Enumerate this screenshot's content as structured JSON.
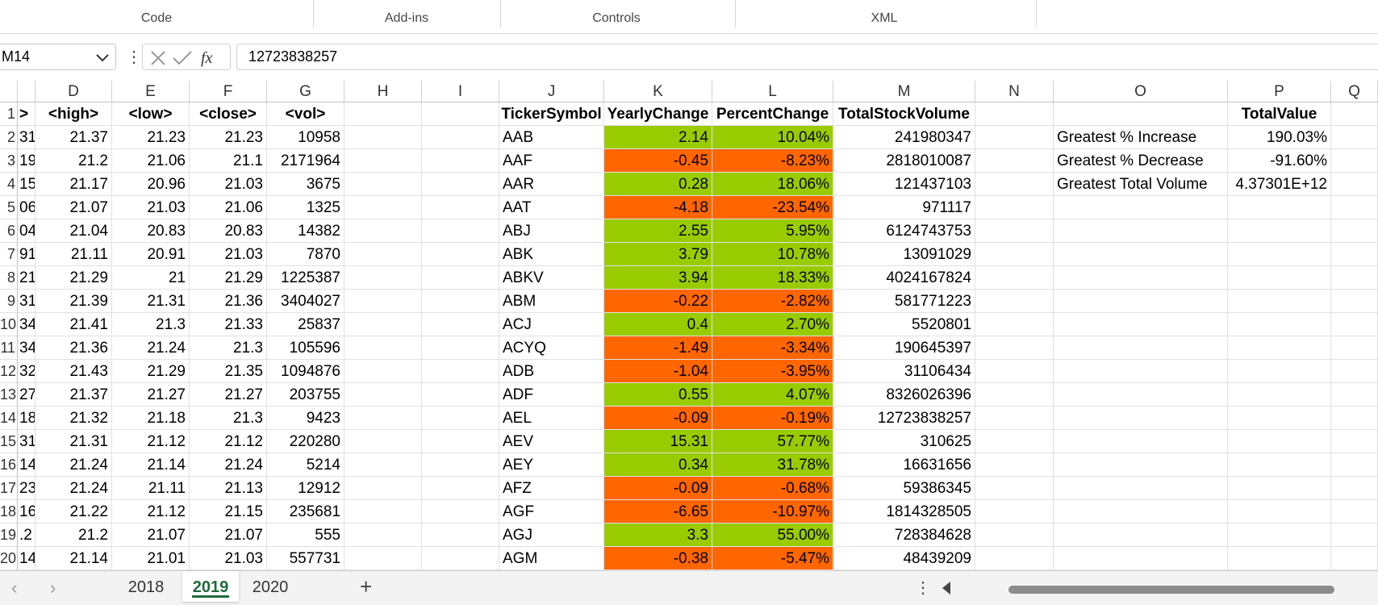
{
  "ribbon": {
    "groups": [
      "Code",
      "Add-ins",
      "Controls",
      "XML"
    ]
  },
  "formula_bar": {
    "name_box": "M14",
    "formula": "12723838257"
  },
  "sheet": {
    "columns": [
      "D",
      "E",
      "F",
      "G",
      "H",
      "I",
      "J",
      "K",
      "L",
      "M",
      "N",
      "O",
      "P",
      "Q"
    ],
    "row_numbers": [
      1,
      2,
      3,
      4,
      5,
      6,
      7,
      8,
      9,
      10,
      11,
      12,
      13,
      14,
      15,
      16,
      17,
      18,
      19,
      20
    ],
    "header": {
      "C": ">",
      "D": "<high>",
      "E": "<low>",
      "F": "<close>",
      "G": "<vol>",
      "J": "TickerSymbol",
      "K": "YearlyChange",
      "L": "PercentChange",
      "M": "TotalStockVolume",
      "P": "TotalValue"
    },
    "col_c": [
      "31",
      "19",
      "15",
      "06",
      "04",
      "91",
      "21",
      "31",
      "34",
      "34",
      "32",
      "27",
      "18",
      "31",
      "14",
      "23",
      "16",
      ".2",
      "14"
    ],
    "rows": [
      [
        21.37,
        21.23,
        21.23,
        10958,
        "AAB",
        2.14,
        "10.04%",
        241980347
      ],
      [
        21.2,
        21.06,
        21.1,
        2171964,
        "AAF",
        -0.45,
        "-8.23%",
        2818010087
      ],
      [
        21.17,
        20.96,
        21.03,
        3675,
        "AAR",
        0.28,
        "18.06%",
        121437103
      ],
      [
        21.07,
        21.03,
        21.06,
        1325,
        "AAT",
        -4.18,
        "-23.54%",
        971117
      ],
      [
        21.04,
        20.83,
        20.83,
        14382,
        "ABJ",
        2.55,
        "5.95%",
        6124743753
      ],
      [
        21.11,
        20.91,
        21.03,
        7870,
        "ABK",
        3.79,
        "10.78%",
        13091029
      ],
      [
        21.29,
        21,
        21.29,
        1225387,
        "ABKV",
        3.94,
        "18.33%",
        4024167824
      ],
      [
        21.39,
        21.31,
        21.36,
        3404027,
        "ABM",
        -0.22,
        "-2.82%",
        581771223
      ],
      [
        21.41,
        21.3,
        21.33,
        25837,
        "ACJ",
        0.4,
        "2.70%",
        5520801
      ],
      [
        21.36,
        21.24,
        21.3,
        105596,
        "ACYQ",
        -1.49,
        "-3.34%",
        190645397
      ],
      [
        21.43,
        21.29,
        21.35,
        1094876,
        "ADB",
        -1.04,
        "-3.95%",
        31106434
      ],
      [
        21.37,
        21.27,
        21.27,
        203755,
        "ADF",
        0.55,
        "4.07%",
        8326026396
      ],
      [
        21.32,
        21.18,
        21.3,
        9423,
        "AEL",
        -0.09,
        "-0.19%",
        12723838257
      ],
      [
        21.31,
        21.12,
        21.12,
        220280,
        "AEV",
        15.31,
        "57.77%",
        310625
      ],
      [
        21.24,
        21.14,
        21.24,
        5214,
        "AEY",
        0.34,
        "31.78%",
        16631656
      ],
      [
        21.24,
        21.11,
        21.13,
        12912,
        "AFZ",
        -0.09,
        "-0.68%",
        59386345
      ],
      [
        21.22,
        21.12,
        21.15,
        235681,
        "AGF",
        -6.65,
        "-10.97%",
        1814328505
      ],
      [
        21.2,
        21.07,
        21.07,
        555,
        "AGJ",
        3.3,
        "55.00%",
        728384628
      ],
      [
        21.14,
        21.01,
        21.03,
        557731,
        "AGM",
        -0.38,
        "-5.47%",
        48439209
      ]
    ],
    "summary": [
      [
        "Greatest % Increase",
        "190.03%"
      ],
      [
        "Greatest % Decrease",
        "-91.60%"
      ],
      [
        "Greatest Total Volume",
        "4.37301E+12"
      ]
    ]
  },
  "conditional_format": {
    "positive": "#99cc00",
    "negative": "#ff6600"
  },
  "tabs": [
    "2018",
    "2019",
    "2020"
  ],
  "active_tab": 1
}
